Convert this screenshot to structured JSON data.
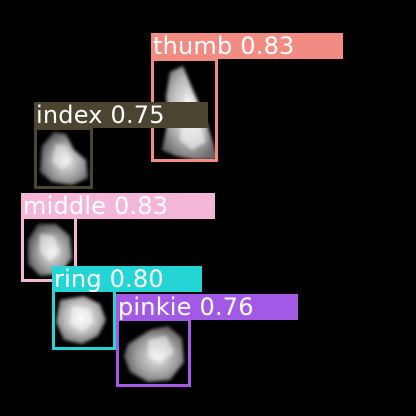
{
  "image": {
    "background": "#000000"
  },
  "detections": [
    {
      "id": "thumb",
      "label": "thumb 0.83",
      "class_name": "thumb",
      "confidence": 0.83,
      "color": "#F28B82",
      "text_color": "#FFFFFF"
    },
    {
      "id": "index",
      "label": "index 0.75",
      "class_name": "index",
      "confidence": 0.75,
      "color": "#4A4430",
      "text_color": "#FFFFFF"
    },
    {
      "id": "middle",
      "label": "middle 0.83",
      "class_name": "middle",
      "confidence": 0.83,
      "color": "#F3B6D8",
      "text_color": "#FFFFFF"
    },
    {
      "id": "ring",
      "label": "ring 0.80",
      "class_name": "ring",
      "confidence": 0.8,
      "color": "#25D4D4",
      "text_color": "#FFFFFF"
    },
    {
      "id": "pinkie",
      "label": "pinkie 0.76",
      "class_name": "pinkie",
      "confidence": 0.76,
      "color": "#A259E6",
      "text_color": "#FFFFFF"
    }
  ]
}
